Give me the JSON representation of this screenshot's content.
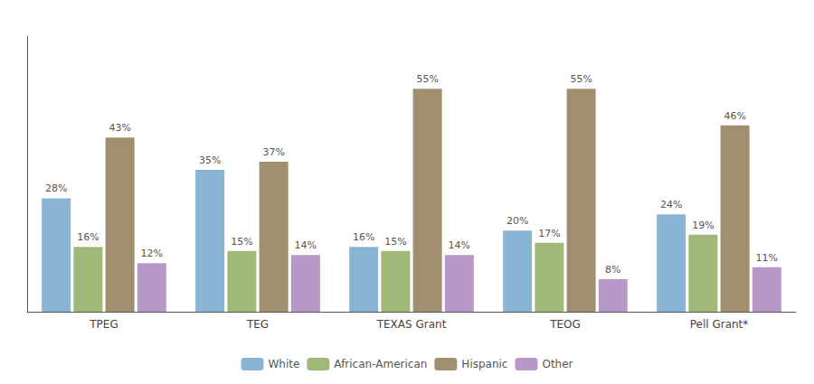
{
  "chart_data": {
    "type": "bar",
    "categories": [
      "TPEG",
      "TEG",
      "TEXAS Grant",
      "TEOG",
      "Pell Grant*"
    ],
    "series": [
      {
        "name": "White",
        "color": "#8ab4d4",
        "values": [
          28,
          35,
          16,
          20,
          24
        ],
        "value_labels": [
          "28%",
          "35%",
          "16%",
          "20%",
          "24%"
        ]
      },
      {
        "name": "African-American",
        "color": "#a0b878",
        "values": [
          16,
          15,
          15,
          17,
          19
        ],
        "value_labels": [
          "16%",
          "15%",
          "15%",
          "17%",
          "19%"
        ]
      },
      {
        "name": "Hispanic",
        "color": "#a09070",
        "values": [
          43,
          37,
          55,
          55,
          46
        ],
        "value_labels": [
          "43%",
          "37%",
          "55%",
          "55%",
          "46%"
        ]
      },
      {
        "name": "Other",
        "color": "#b898c8",
        "values": [
          12,
          14,
          14,
          8,
          11
        ],
        "value_labels": [
          "12%",
          "14%",
          "14%",
          "8%",
          "11%"
        ]
      }
    ],
    "ylim": [
      0,
      68
    ],
    "grid": false,
    "legend": "bottom",
    "data_labels": true,
    "tick_labels": "x"
  }
}
